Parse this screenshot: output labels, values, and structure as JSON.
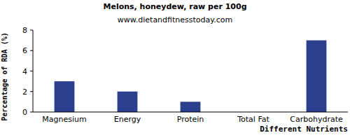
{
  "chart_data": {
    "type": "bar",
    "title": "Melons, honeydew, raw per 100g",
    "subtitle": "www.dietandfitnesstoday.com",
    "x_label": "Different Nutrients",
    "y_label": "Percentage of RDA (%)",
    "categories": [
      "Magnesium",
      "Energy",
      "Protein",
      "Total Fat",
      "Carbohydrate"
    ],
    "values": [
      3,
      2,
      1,
      0,
      7
    ],
    "color": "#2b3f8f",
    "ylim": [
      0,
      8
    ],
    "yticks": [
      0,
      2,
      4,
      6,
      8
    ],
    "grid": false
  }
}
